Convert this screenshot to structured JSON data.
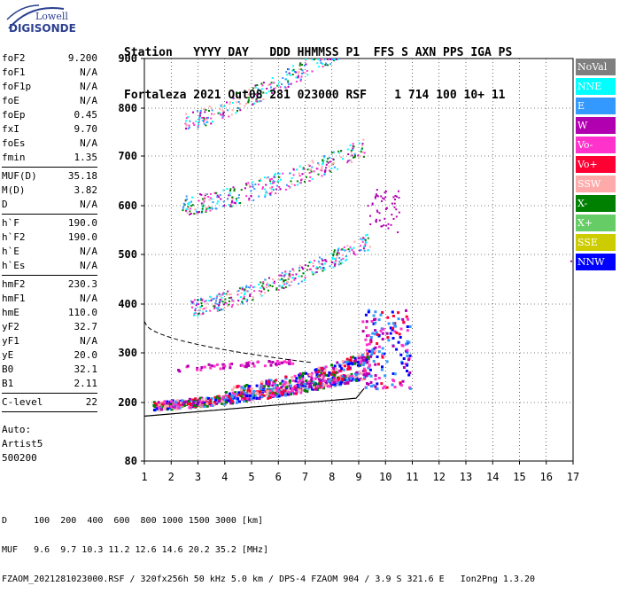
{
  "logo": {
    "brand_small": "Lowell",
    "brand": "DIGISONDE"
  },
  "header": {
    "line1": "Station   YYYY DAY   DDD HHMMSS P1  FFS S AXN PPS IGA PS",
    "line2": "Fortaleza 2021 Out08 281 023000 RSF    1 714 100 10+ 11"
  },
  "params_group1": [
    {
      "label": "foF2",
      "value": "9.200"
    },
    {
      "label": "foF1",
      "value": "N/A"
    },
    {
      "label": "foF1p",
      "value": "N/A"
    },
    {
      "label": "foE",
      "value": "N/A"
    },
    {
      "label": "foEp",
      "value": "0.45"
    },
    {
      "label": "fxI",
      "value": "9.70"
    },
    {
      "label": "foEs",
      "value": "N/A"
    },
    {
      "label": "fmin",
      "value": "1.35"
    }
  ],
  "params_group2": [
    {
      "label": "MUF(D)",
      "value": "35.18"
    },
    {
      "label": "M(D)",
      "value": "3.82"
    },
    {
      "label": "D",
      "value": "N/A"
    }
  ],
  "params_group3": [
    {
      "label": "h`F",
      "value": "190.0"
    },
    {
      "label": "h`F2",
      "value": "190.0"
    },
    {
      "label": "h`E",
      "value": "N/A"
    },
    {
      "label": "h`Es",
      "value": "N/A"
    }
  ],
  "params_group4": [
    {
      "label": "hmF2",
      "value": "230.3"
    },
    {
      "label": "hmF1",
      "value": "N/A"
    },
    {
      "label": "hmE",
      "value": "110.0"
    },
    {
      "label": "yF2",
      "value": "32.7"
    },
    {
      "label": "yF1",
      "value": "N/A"
    },
    {
      "label": "yE",
      "value": "20.0"
    },
    {
      "label": "B0",
      "value": "32.1"
    },
    {
      "label": "B1",
      "value": "2.11"
    }
  ],
  "params_group5": [
    {
      "label": "C-level",
      "value": "22"
    }
  ],
  "auto": {
    "line1": "Auto:",
    "line2": "Artist5",
    "line3": "500200"
  },
  "plot": {
    "y_ticks": [
      "900",
      "800",
      "700",
      "600",
      "500",
      "400",
      "300",
      "200",
      "80"
    ],
    "x_ticks": [
      "1",
      "2",
      "3",
      "4",
      "5",
      "6",
      "7",
      "8",
      "9",
      "10",
      "11",
      "12",
      "13",
      "14",
      "15",
      "16",
      "17"
    ]
  },
  "legend": [
    {
      "label": "NoVal",
      "color": "#7f7f7f"
    },
    {
      "label": "NNE",
      "color": "#00ffff"
    },
    {
      "label": "E",
      "color": "#3399ff"
    },
    {
      "label": "W",
      "color": "#b000b0"
    },
    {
      "label": "Vo-",
      "color": "#ff33cc"
    },
    {
      "label": "Vo+",
      "color": "#ff0033"
    },
    {
      "label": "SSW",
      "color": "#ffaaaa"
    },
    {
      "label": "X-",
      "color": "#008000"
    },
    {
      "label": "X+",
      "color": "#66cc66"
    },
    {
      "label": "SSE",
      "color": "#cccc00"
    },
    {
      "label": "NNW",
      "color": "#0000ff"
    }
  ],
  "footer": {
    "line1": "D     100  200  400  600  800 1000 1500 3000 [km]",
    "line2": "MUF   9.6  9.7 10.3 11.2 12.6 14.6 20.2 35.2 [MHz]",
    "line3": "FZAOM_2021281023000.RSF / 320fx256h 50 kHz 5.0 km / DPS-4 FZAOM 904 / 3.9 S 321.6 E   Ion2Png 1.3.20"
  }
}
